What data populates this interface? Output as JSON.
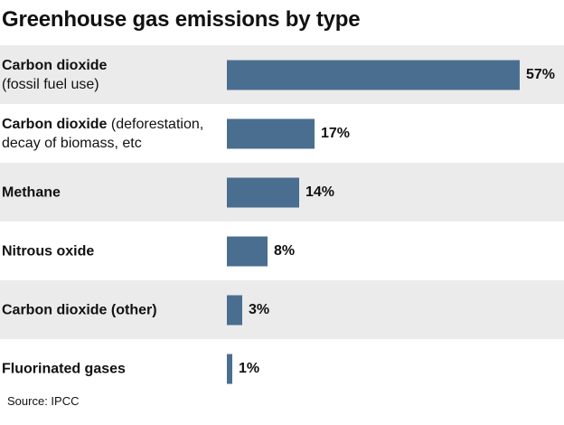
{
  "chart_data": {
    "type": "bar",
    "orientation": "horizontal",
    "title": "Greenhouse gas emissions by type",
    "categories": [
      {
        "main": "Carbon dioxide",
        "sub": "(fossil fuel use)",
        "sub_on_new_line": true
      },
      {
        "main": "Carbon dioxide",
        "sub": "(deforestation, decay of biomass, etc",
        "sub_on_new_line": false
      },
      {
        "main": "Methane",
        "sub": "",
        "sub_on_new_line": false
      },
      {
        "main": "Nitrous oxide",
        "sub": "",
        "sub_on_new_line": false
      },
      {
        "main": "Carbon dioxide (other)",
        "sub": "",
        "sub_on_new_line": false
      },
      {
        "main": "Fluorinated gases",
        "sub": "",
        "sub_on_new_line": false
      }
    ],
    "values": [
      57,
      17,
      14,
      8,
      3,
      1
    ],
    "value_labels": [
      "57%",
      "17%",
      "14%",
      "8%",
      "3%",
      "1%"
    ],
    "unit": "%",
    "xlim": [
      0,
      57
    ],
    "grid": false,
    "legend": "none",
    "row_shading": "alternating",
    "colors": {
      "bar": "#4a6e8f",
      "shaded_row": "#ebebeb",
      "text": "#111111"
    }
  },
  "source": "Source: IPCC"
}
